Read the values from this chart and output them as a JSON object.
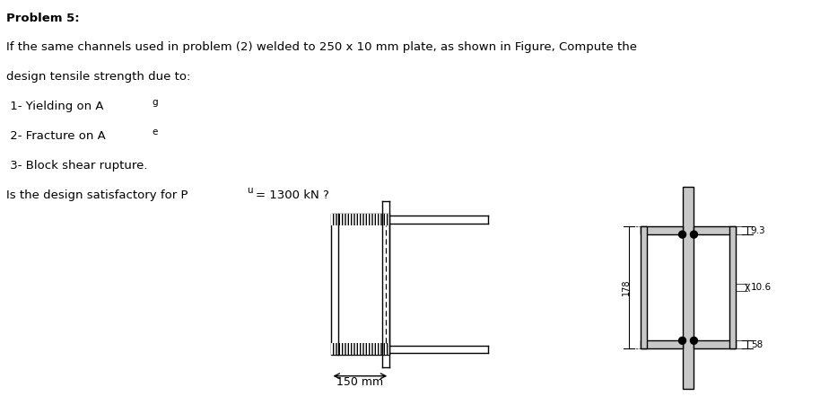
{
  "title_bold": "Problem 5:",
  "line1": "If the same channels used in problem (2) welded to 250 x 10 mm plate, as shown in Figure, Compute the",
  "line2": "design tensile strength due to:",
  "line3a": " 1- Yielding on A",
  "line3b": "g",
  "line4a": " 2- Fracture on A",
  "line4b": "e",
  "line5": " 3- Block shear rupture.",
  "line6a": "Is the design satisfactory for P",
  "line6b": "u",
  "line6c": "= 1300 kN ?",
  "dim_178": "178",
  "dim_10_6": "10.6",
  "dim_9_3": "9.3",
  "dim_58": "58",
  "dim_150": "150 mm",
  "background_color": "#ffffff",
  "line_color": "#000000",
  "gray_fill": "#c8c8c8",
  "dark_gray": "#888888"
}
